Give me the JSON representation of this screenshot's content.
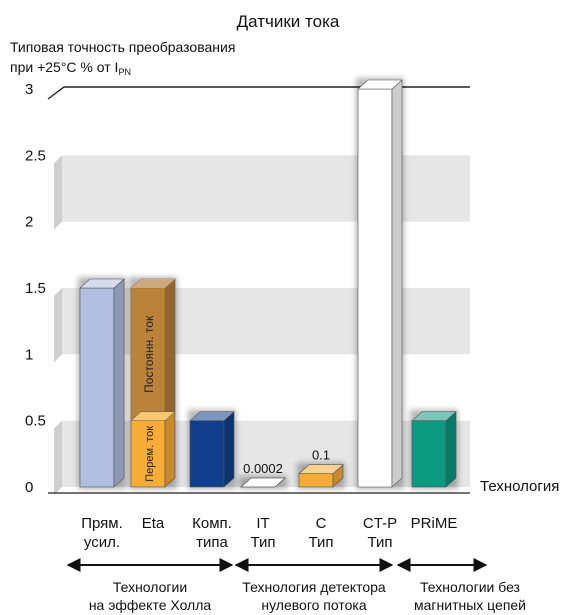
{
  "chart_data": {
    "type": "bar",
    "title": "Датчики тока",
    "ylabel": {
      "line1": "Типовая точность преобразования",
      "line2_prefix": "при +25°C % от I",
      "line2_sub": "PN"
    },
    "xlabel": "Технология",
    "ylim": [
      0,
      3
    ],
    "yticks": [
      "0",
      "0.5",
      "1",
      "1.5",
      "2",
      "2.5",
      "3"
    ],
    "grid": "alternating bands",
    "categories": [
      {
        "label1": "Прям.",
        "label2": "усил.",
        "value": 1.5,
        "color": "#b3bfe0"
      },
      {
        "label1": "Eta",
        "label2": "",
        "value": 1.5,
        "color": "#f7ad35",
        "overlay_color": "#b07a3a",
        "segments": [
          {
            "name": "Перем. ток",
            "value": 0.5
          },
          {
            "name": "Постоянн. ток",
            "value": 1.0
          }
        ]
      },
      {
        "label1": "Комп.",
        "label2": "типа",
        "value": 0.5,
        "color": "#0f3f8c"
      },
      {
        "label1": "IT",
        "label2": "Тип",
        "value": 0.0002,
        "color": "#ffffff",
        "data_label": "0.0002"
      },
      {
        "label1": "C",
        "label2": "Тип",
        "value": 0.1,
        "color": "#f7ad35",
        "data_label": "0.1"
      },
      {
        "label1": "CT-P",
        "label2": "Тип",
        "value": 3,
        "color": "#ffffff"
      },
      {
        "label1": "PRiME",
        "label2": "",
        "value": 0.5,
        "color": "#0a9a82"
      }
    ],
    "technology_groups": [
      {
        "line1": "Технологии",
        "line2": "на эффекте Холла"
      },
      {
        "line1": "Технология детектора",
        "line2": "нулевого потока"
      },
      {
        "line1": "Технологии без",
        "line2": "магнитных цепей"
      }
    ]
  }
}
